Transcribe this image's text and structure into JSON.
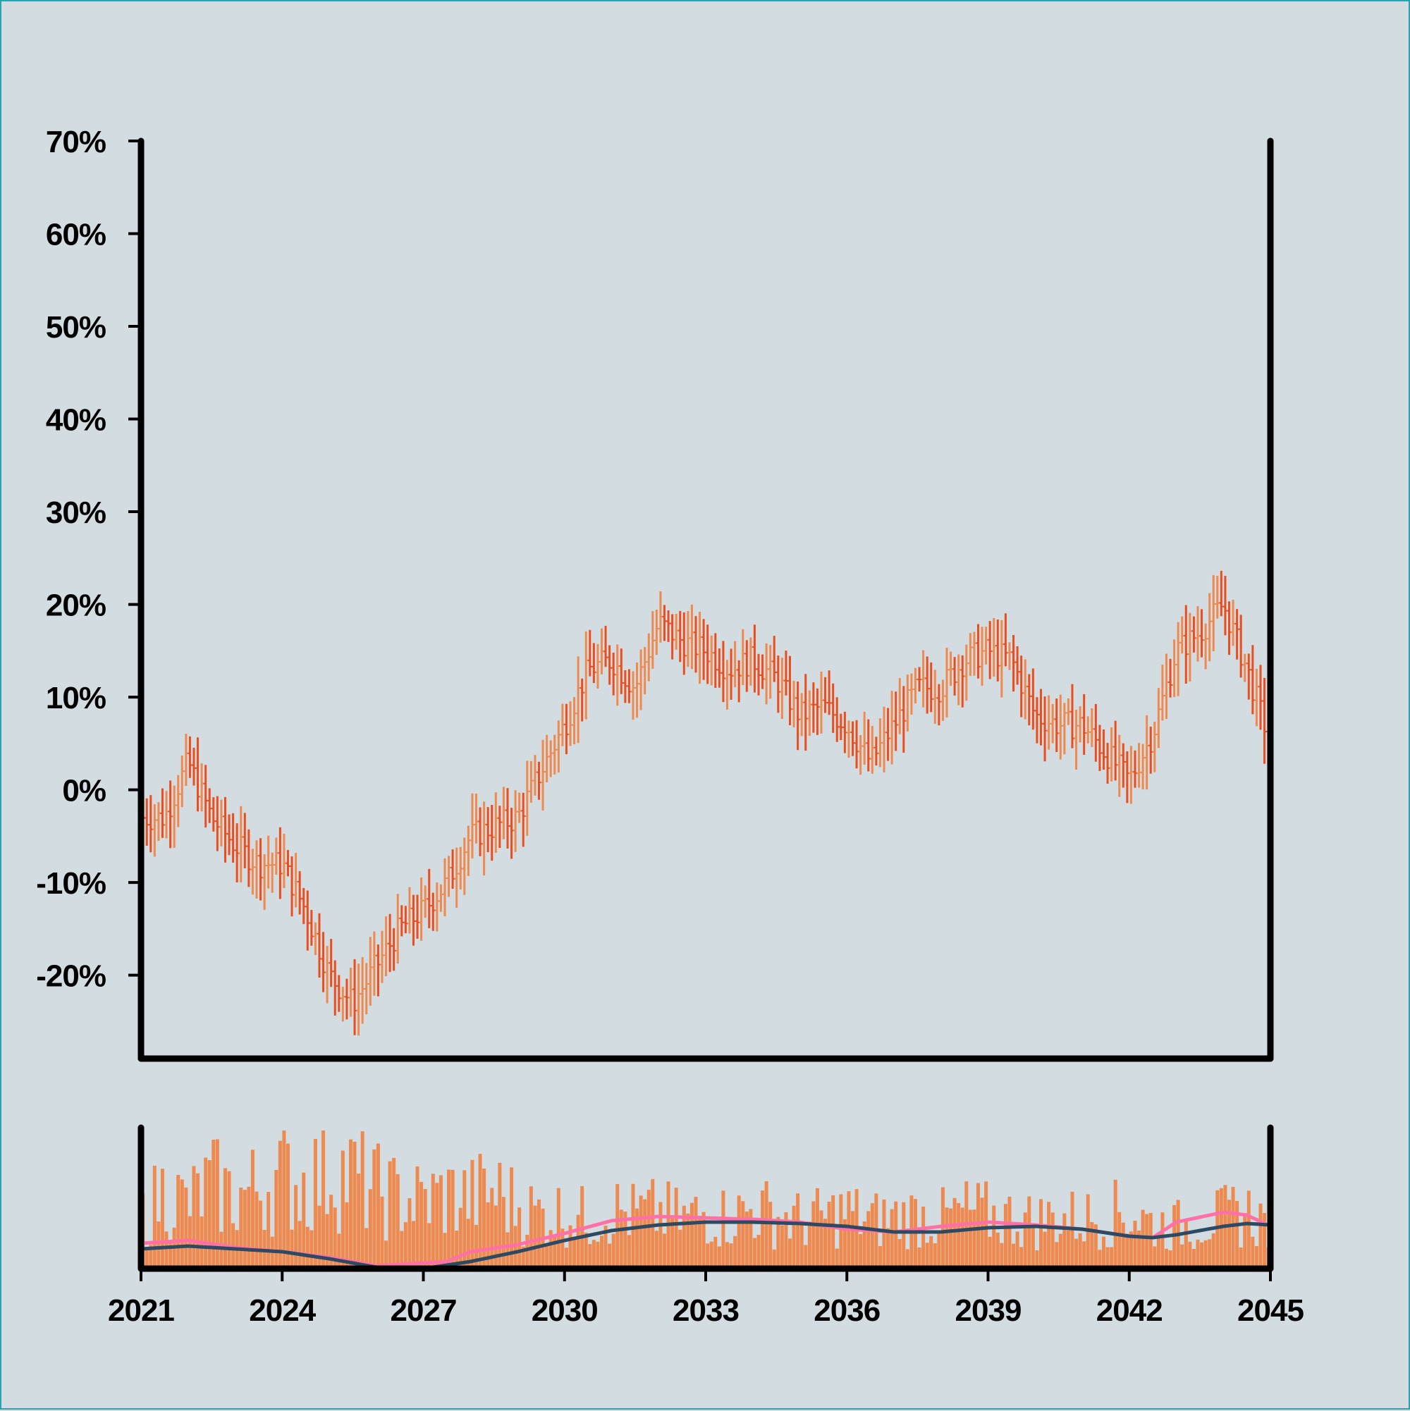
{
  "colors": {
    "background": "#d3dce0",
    "frame_border": "#2aa3b0",
    "axis": "#000000",
    "ohlc_up": "#ee8a4f",
    "ohlc_down": "#ea4e1f",
    "volume_bars": "#ee8a4f",
    "ma_fast": "#ff70a6",
    "ma_slow": "#2e4a63"
  },
  "chart_data": [
    {
      "type": "ohlc",
      "title": "",
      "xlabel": "",
      "ylabel": "",
      "x_range": [
        "2021-01",
        "2045-01"
      ],
      "ylim": [
        -29,
        70
      ],
      "y_unit": "%",
      "grid": false,
      "x_ticks": [
        "2021",
        "2024",
        "2027",
        "2030",
        "2033",
        "2036",
        "2039",
        "2042",
        "2045"
      ],
      "y_ticks": [
        "70%",
        "60%",
        "50%",
        "40%",
        "30%",
        "20%",
        "10%",
        "0%",
        "-10%",
        "-20%"
      ],
      "y_tick_values": [
        70,
        60,
        50,
        40,
        30,
        20,
        10,
        0,
        -10,
        -20
      ],
      "series": [
        {
          "x": [
            2021.0,
            2021.5,
            2022.0,
            2022.5,
            2023.0,
            2023.5,
            2024.0,
            2024.5,
            2025.0,
            2025.5,
            2026.0,
            2026.5,
            2027.0,
            2027.5,
            2028.0,
            2028.5,
            2029.0,
            2029.5,
            2030.0,
            2030.5,
            2031.0,
            2031.5,
            2032.0,
            2032.5,
            2033.0,
            2033.5,
            2034.0,
            2034.5,
            2035.0,
            2035.5,
            2036.0,
            2036.5,
            2037.0,
            2037.5,
            2038.0,
            2038.5,
            2039.0,
            2039.5,
            2040.0,
            2040.5,
            2041.0,
            2041.5,
            2042.0,
            2042.5,
            2043.0,
            2043.5,
            2044.0,
            2044.5,
            2045.0
          ],
          "close": [
            -3,
            -3,
            3,
            -3,
            -6,
            -8,
            -8,
            -13,
            -20,
            -23,
            -19,
            -15,
            -13,
            -10,
            -5,
            -4,
            -3,
            2,
            7,
            13,
            14,
            11,
            18,
            16,
            15,
            13,
            14,
            12,
            8,
            9,
            7,
            3,
            7,
            11,
            11,
            14,
            15,
            14,
            8,
            7,
            7,
            4,
            1,
            6,
            15,
            17,
            20,
            13,
            5
          ]
        }
      ]
    },
    {
      "type": "bar",
      "title": "",
      "xlabel": "",
      "ylabel": "",
      "x_range": [
        "2021-01",
        "2045-01"
      ],
      "ylim": [
        0,
        100
      ],
      "x_ticks": [
        "2021",
        "2024",
        "2027",
        "2030",
        "2033",
        "2036",
        "2039",
        "2042",
        "2045"
      ],
      "series": [
        {
          "x": [
            2021.0,
            2021.5,
            2022.0,
            2022.5,
            2023.0,
            2023.5,
            2024.0,
            2024.5,
            2025.0,
            2025.5,
            2026.0,
            2026.5,
            2027.0,
            2027.5,
            2028.0,
            2028.5,
            2029.0,
            2029.5,
            2030.0,
            2030.5,
            2031.0,
            2031.5,
            2032.0,
            2032.5,
            2033.0,
            2033.5,
            2034.0,
            2034.5,
            2035.0,
            2035.5,
            2036.0,
            2036.5,
            2037.0,
            2037.5,
            2038.0,
            2038.5,
            2039.0,
            2039.5,
            2040.0,
            2040.5,
            2041.0,
            2041.5,
            2042.0,
            2042.5,
            2043.0,
            2043.5,
            2044.0,
            2044.5,
            2045.0
          ],
          "values": [
            35,
            55,
            45,
            60,
            50,
            58,
            65,
            60,
            72,
            65,
            55,
            50,
            48,
            52,
            50,
            55,
            45,
            38,
            40,
            35,
            42,
            38,
            40,
            35,
            40,
            36,
            42,
            38,
            34,
            36,
            40,
            34,
            36,
            38,
            35,
            40,
            38,
            36,
            34,
            36,
            35,
            38,
            40,
            32,
            30,
            34,
            36,
            40,
            30
          ]
        },
        {
          "name": "",
          "type": "line",
          "x": [
            2021.0,
            2022.0,
            2023.0,
            2024.0,
            2025.0,
            2026.0,
            2027.0,
            2027.5,
            2028.0,
            2029.0,
            2030.0,
            2031.0,
            2032.0,
            2033.0,
            2034.0,
            2035.0,
            2036.0,
            2037.0,
            2038.0,
            2039.0,
            2040.0,
            2041.0,
            2042.0,
            2042.5,
            2043.0,
            2044.0,
            2044.5,
            2045.0
          ],
          "values": [
            18,
            20,
            15,
            12,
            8,
            2,
            4,
            5,
            12,
            17,
            25,
            34,
            37,
            36,
            35,
            33,
            28,
            26,
            30,
            33,
            31,
            28,
            23,
            22,
            33,
            40,
            38,
            30
          ]
        },
        {
          "name": "",
          "type": "line",
          "x": [
            2021.0,
            2022.0,
            2023.0,
            2024.0,
            2025.0,
            2026.0,
            2027.0,
            2028.0,
            2029.0,
            2030.0,
            2031.0,
            2032.0,
            2033.0,
            2034.0,
            2035.0,
            2036.0,
            2037.0,
            2038.0,
            2039.0,
            2040.0,
            2041.0,
            2042.0,
            2042.5,
            2043.0,
            2044.0,
            2044.5,
            2045.0
          ],
          "values": [
            14,
            16,
            14,
            12,
            7,
            1,
            0,
            5,
            12,
            20,
            27,
            31,
            33,
            33,
            32,
            30,
            26,
            26,
            29,
            30,
            28,
            23,
            22,
            24,
            30,
            32,
            31
          ]
        }
      ]
    }
  ]
}
